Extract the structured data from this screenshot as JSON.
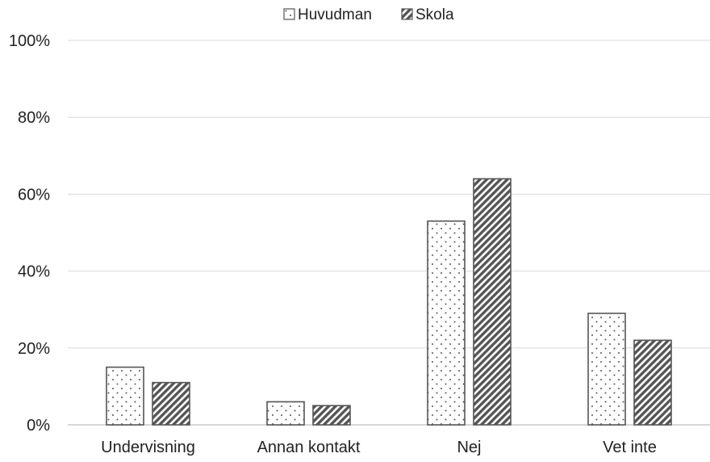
{
  "chart_data": {
    "type": "bar",
    "categories": [
      "Undervisning",
      "Annan kontakt",
      "Nej",
      "Vet inte"
    ],
    "series": [
      {
        "name": "Huvudman",
        "pattern": "dots",
        "values": [
          15,
          6,
          53,
          29
        ]
      },
      {
        "name": "Skola",
        "pattern": "diagonal-hatch",
        "values": [
          11,
          5,
          64,
          22
        ]
      }
    ],
    "yticks": [
      "0%",
      "20%",
      "40%",
      "60%",
      "80%",
      "100%"
    ],
    "ylim": [
      0,
      100
    ],
    "grid": true,
    "legend_position": "top-center",
    "colors": {
      "bar_stroke": "#555555",
      "pattern_fill": "#555555",
      "gridline": "#d9d9d9"
    }
  }
}
